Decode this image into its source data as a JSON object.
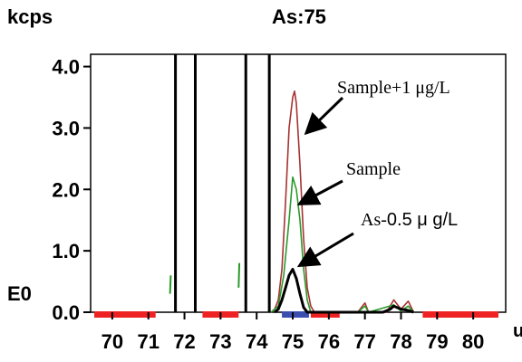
{
  "chart_data": {
    "type": "line",
    "title": "As:75",
    "ylabel": "kcps",
    "xlabel_unit": "u",
    "y_exponent_label": "E0",
    "xlim": [
      69.4,
      80.9
    ],
    "ylim": [
      0,
      4.2
    ],
    "x_ticks": [
      "70",
      "71",
      "72",
      "73",
      "74",
      "75",
      "76",
      "77",
      "78",
      "79",
      "80"
    ],
    "y_ticks": [
      "0.0",
      "1.0",
      "2.0",
      "3.0",
      "4.0"
    ],
    "series": [
      {
        "name": "Sample+1 μg/L",
        "color": "#a83232",
        "points": [
          [
            74.4,
            0
          ],
          [
            74.5,
            0.05
          ],
          [
            74.6,
            0.2
          ],
          [
            74.7,
            0.7
          ],
          [
            74.8,
            1.8
          ],
          [
            74.9,
            3.0
          ],
          [
            75.0,
            3.5
          ],
          [
            75.05,
            3.6
          ],
          [
            75.1,
            3.4
          ],
          [
            75.2,
            2.4
          ],
          [
            75.3,
            1.2
          ],
          [
            75.4,
            0.4
          ],
          [
            75.5,
            0.1
          ],
          [
            75.6,
            0
          ],
          [
            76.8,
            0
          ],
          [
            77.0,
            0.15
          ],
          [
            77.1,
            0
          ],
          [
            77.6,
            0
          ],
          [
            77.8,
            0.2
          ],
          [
            78.0,
            0.05
          ],
          [
            78.2,
            0.18
          ],
          [
            78.35,
            0
          ]
        ]
      },
      {
        "name": "Sample",
        "color": "#2a9a2a",
        "points": [
          [
            74.4,
            0
          ],
          [
            74.6,
            0.1
          ],
          [
            74.75,
            0.6
          ],
          [
            74.9,
            1.5
          ],
          [
            75.0,
            2.2
          ],
          [
            75.1,
            2.0
          ],
          [
            75.2,
            1.5
          ],
          [
            75.3,
            0.7
          ],
          [
            75.4,
            0.2
          ],
          [
            75.5,
            0
          ],
          [
            76.8,
            0
          ],
          [
            77.0,
            0.1
          ],
          [
            77.1,
            0
          ],
          [
            77.8,
            0.12
          ],
          [
            78.0,
            0.02
          ],
          [
            78.2,
            0.1
          ],
          [
            78.35,
            0
          ]
        ]
      },
      {
        "name": "As-0.5 μg/L",
        "color": "#000000",
        "points": [
          [
            74.5,
            0
          ],
          [
            74.6,
            0.05
          ],
          [
            74.7,
            0.2
          ],
          [
            74.8,
            0.4
          ],
          [
            74.9,
            0.6
          ],
          [
            75.0,
            0.7
          ],
          [
            75.1,
            0.55
          ],
          [
            75.2,
            0.3
          ],
          [
            75.3,
            0.08
          ],
          [
            75.4,
            0
          ],
          [
            77.5,
            0
          ],
          [
            77.7,
            0.05
          ],
          [
            77.8,
            0.1
          ],
          [
            78.0,
            0.05
          ],
          [
            78.2,
            0.03
          ],
          [
            78.35,
            0
          ]
        ]
      }
    ],
    "annotations": [
      {
        "text": "Sample+1 μg/L",
        "target_series": 0
      },
      {
        "text": "Sample",
        "target_series": 1
      },
      {
        "text": "As-",
        "text_b": "0.5",
        "text_c": " μ g/L",
        "target_series": 2
      }
    ]
  }
}
